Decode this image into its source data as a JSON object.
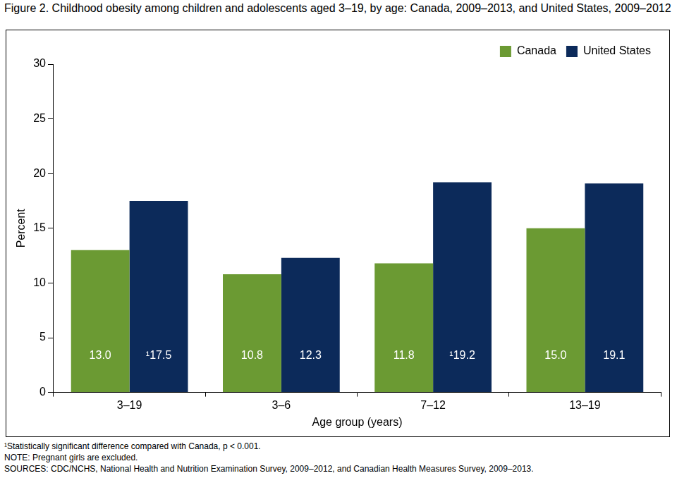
{
  "chart_data": {
    "type": "bar",
    "title": "Figure 2. Childhood obesity among children and adolescents aged 3–19, by age: Canada, 2009–2013, and United States, 2009–2012",
    "x_label": "Age group (years)",
    "y_label": "Percent",
    "categories": [
      "3–19",
      "3–6",
      "7–12",
      "13–19"
    ],
    "series": [
      {
        "name": "Canada",
        "color": "#6b9a33",
        "values": [
          13.0,
          10.8,
          11.8,
          15.0
        ],
        "value_labels": [
          "13.0",
          "10.8",
          "11.8",
          "15.0"
        ]
      },
      {
        "name": "United States",
        "color": "#0c2a5a",
        "values": [
          17.5,
          12.3,
          19.2,
          19.1
        ],
        "value_labels": [
          "¹17.5",
          "12.3",
          "¹19.2",
          "19.1"
        ]
      }
    ],
    "ylim": [
      0,
      30
    ],
    "yticks": [
      0,
      5,
      10,
      15,
      20,
      25,
      30
    ],
    "grid": false,
    "legend": "top-right",
    "data_labels": true,
    "footnotes": [
      "¹Statistically significant difference compared with Canada, p < 0.001.",
      "NOTE: Pregnant girls are excluded.",
      "SOURCES: CDC/NCHS, National Health and Nutrition Examination Survey, 2009–2012, and Canadian Health Measures Survey, 2009–2013."
    ]
  }
}
